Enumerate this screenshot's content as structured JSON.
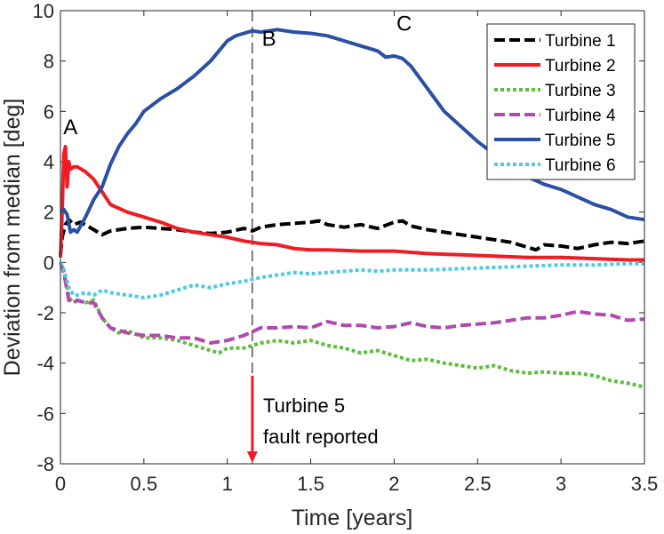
{
  "chart_data": {
    "type": "line",
    "title": "",
    "xlabel": "Time [years]",
    "ylabel": "Deviation from median [deg]",
    "xlim": [
      0,
      3.5
    ],
    "ylim": [
      -8,
      10
    ],
    "xticks": [
      0,
      0.5,
      1,
      1.5,
      2,
      2.5,
      3,
      3.5
    ],
    "xtick_labels": [
      "0",
      "0.5",
      "1",
      "1.5",
      "2",
      "2.5",
      "3",
      "3.5"
    ],
    "yticks": [
      -8,
      -6,
      -4,
      -2,
      0,
      2,
      4,
      6,
      8,
      10
    ],
    "ytick_labels": [
      "-8",
      "-6",
      "-4",
      "-2",
      "0",
      "2",
      "4",
      "6",
      "8",
      "10"
    ],
    "legend_position": "top-right",
    "series": [
      {
        "name": "Turbine 1",
        "color": "#000000",
        "style": "dashed",
        "x": [
          0,
          0.01,
          0.03,
          0.05,
          0.08,
          0.12,
          0.2,
          0.25,
          0.3,
          0.4,
          0.5,
          0.6,
          0.7,
          0.8,
          0.9,
          1.0,
          1.1,
          1.15,
          1.2,
          1.3,
          1.4,
          1.5,
          1.55,
          1.6,
          1.7,
          1.8,
          1.9,
          2.0,
          2.05,
          2.1,
          2.2,
          2.3,
          2.4,
          2.5,
          2.6,
          2.7,
          2.8,
          2.85,
          2.9,
          3.0,
          3.1,
          3.2,
          3.3,
          3.4,
          3.5
        ],
        "y": [
          0.3,
          1.0,
          1.5,
          1.7,
          1.5,
          1.6,
          1.3,
          1.1,
          1.25,
          1.35,
          1.4,
          1.35,
          1.3,
          1.2,
          1.15,
          1.2,
          1.35,
          1.25,
          1.4,
          1.5,
          1.55,
          1.6,
          1.65,
          1.5,
          1.4,
          1.5,
          1.35,
          1.6,
          1.65,
          1.45,
          1.3,
          1.2,
          1.1,
          1.0,
          0.9,
          0.8,
          0.6,
          0.5,
          0.7,
          0.65,
          0.55,
          0.7,
          0.8,
          0.75,
          0.85
        ]
      },
      {
        "name": "Turbine 2",
        "color": "#ee1c25",
        "style": "solid",
        "x": [
          0,
          0.01,
          0.02,
          0.03,
          0.04,
          0.05,
          0.06,
          0.08,
          0.1,
          0.15,
          0.2,
          0.25,
          0.3,
          0.4,
          0.5,
          0.6,
          0.7,
          0.8,
          0.9,
          1.0,
          1.1,
          1.2,
          1.3,
          1.4,
          1.5,
          1.6,
          1.8,
          2.0,
          2.2,
          2.4,
          2.6,
          2.8,
          3.0,
          3.2,
          3.4,
          3.5
        ],
        "y": [
          0.2,
          2.0,
          4.3,
          4.6,
          3.0,
          4.0,
          3.7,
          3.8,
          3.8,
          3.6,
          3.3,
          2.8,
          2.3,
          2.0,
          1.8,
          1.6,
          1.35,
          1.2,
          1.1,
          1.0,
          0.85,
          0.75,
          0.7,
          0.55,
          0.5,
          0.5,
          0.45,
          0.45,
          0.35,
          0.3,
          0.25,
          0.2,
          0.2,
          0.15,
          0.1,
          0.1
        ]
      },
      {
        "name": "Turbine 3",
        "color": "#5fbe3c",
        "style": "dotted",
        "x": [
          0,
          0.02,
          0.05,
          0.08,
          0.1,
          0.15,
          0.2,
          0.25,
          0.3,
          0.35,
          0.4,
          0.5,
          0.6,
          0.7,
          0.8,
          0.9,
          0.95,
          1.0,
          1.1,
          1.2,
          1.3,
          1.4,
          1.5,
          1.6,
          1.7,
          1.8,
          1.9,
          2.0,
          2.1,
          2.2,
          2.3,
          2.4,
          2.5,
          2.6,
          2.7,
          2.8,
          2.9,
          3.0,
          3.1,
          3.2,
          3.3,
          3.4,
          3.5
        ],
        "y": [
          0,
          -0.3,
          -1.4,
          -1.6,
          -1.5,
          -1.6,
          -1.5,
          -2.2,
          -2.6,
          -2.8,
          -2.7,
          -3.0,
          -3.0,
          -3.1,
          -3.3,
          -3.5,
          -3.6,
          -3.4,
          -3.4,
          -3.2,
          -3.1,
          -3.2,
          -3.1,
          -3.3,
          -3.4,
          -3.6,
          -3.5,
          -3.7,
          -3.9,
          -3.85,
          -4.0,
          -4.1,
          -4.2,
          -4.1,
          -4.3,
          -4.4,
          -4.35,
          -4.4,
          -4.4,
          -4.5,
          -4.7,
          -4.8,
          -4.95
        ]
      },
      {
        "name": "Turbine 4",
        "color": "#b04bad",
        "style": "dashed",
        "x": [
          0,
          0.02,
          0.05,
          0.08,
          0.1,
          0.15,
          0.2,
          0.25,
          0.3,
          0.35,
          0.4,
          0.5,
          0.6,
          0.7,
          0.8,
          0.9,
          1.0,
          1.1,
          1.15,
          1.2,
          1.3,
          1.4,
          1.5,
          1.6,
          1.7,
          1.8,
          1.9,
          2.0,
          2.1,
          2.2,
          2.3,
          2.4,
          2.5,
          2.6,
          2.7,
          2.8,
          2.9,
          3.0,
          3.1,
          3.2,
          3.3,
          3.4,
          3.5
        ],
        "y": [
          0,
          -0.4,
          -1.5,
          -1.6,
          -1.5,
          -1.6,
          -1.6,
          -2.2,
          -2.6,
          -2.7,
          -2.8,
          -2.9,
          -2.9,
          -3.0,
          -3.0,
          -3.2,
          -3.1,
          -2.9,
          -2.75,
          -2.6,
          -2.6,
          -2.55,
          -2.6,
          -2.35,
          -2.5,
          -2.5,
          -2.6,
          -2.55,
          -2.4,
          -2.55,
          -2.6,
          -2.5,
          -2.45,
          -2.4,
          -2.3,
          -2.2,
          -2.2,
          -2.1,
          -1.95,
          -2.05,
          -2.1,
          -2.3,
          -2.25
        ]
      },
      {
        "name": "Turbine 5",
        "color": "#2a4fa5",
        "style": "solid",
        "x": [
          0,
          0.02,
          0.04,
          0.06,
          0.08,
          0.1,
          0.15,
          0.2,
          0.25,
          0.3,
          0.35,
          0.4,
          0.45,
          0.5,
          0.6,
          0.7,
          0.8,
          0.9,
          0.95,
          1.0,
          1.05,
          1.1,
          1.15,
          1.2,
          1.3,
          1.4,
          1.5,
          1.6,
          1.7,
          1.8,
          1.9,
          1.95,
          2.0,
          2.05,
          2.1,
          2.2,
          2.3,
          2.4,
          2.5,
          2.6,
          2.7,
          2.8,
          2.9,
          3.0,
          3.1,
          3.2,
          3.3,
          3.4,
          3.5
        ],
        "y": [
          2.0,
          2.1,
          1.9,
          1.2,
          1.3,
          1.2,
          1.8,
          2.5,
          3.0,
          3.9,
          4.6,
          5.1,
          5.5,
          6.0,
          6.5,
          6.9,
          7.4,
          8.0,
          8.4,
          8.8,
          9.0,
          9.1,
          9.2,
          9.15,
          9.25,
          9.15,
          9.1,
          9.0,
          8.8,
          8.6,
          8.4,
          8.15,
          8.2,
          8.1,
          7.8,
          6.9,
          6.0,
          5.4,
          4.8,
          4.3,
          3.8,
          3.4,
          3.1,
          2.9,
          2.6,
          2.3,
          2.1,
          1.8,
          1.7
        ]
      },
      {
        "name": "Turbine 6",
        "color": "#4ecae0",
        "style": "dotted",
        "x": [
          0,
          0.02,
          0.05,
          0.08,
          0.1,
          0.15,
          0.2,
          0.25,
          0.3,
          0.4,
          0.5,
          0.6,
          0.7,
          0.8,
          0.9,
          1.0,
          1.1,
          1.2,
          1.3,
          1.4,
          1.5,
          1.6,
          1.7,
          1.8,
          1.9,
          2.0,
          2.2,
          2.4,
          2.6,
          2.8,
          3.0,
          3.2,
          3.4,
          3.5
        ],
        "y": [
          0,
          -0.3,
          -1.0,
          -1.3,
          -1.3,
          -1.2,
          -1.3,
          -1.1,
          -1.2,
          -1.3,
          -1.4,
          -1.3,
          -1.1,
          -0.9,
          -1.0,
          -0.85,
          -0.75,
          -0.6,
          -0.5,
          -0.4,
          -0.45,
          -0.4,
          -0.35,
          -0.3,
          -0.35,
          -0.3,
          -0.3,
          -0.25,
          -0.2,
          -0.15,
          -0.1,
          -0.1,
          -0.05,
          -0.05
        ]
      }
    ],
    "annotations": [
      {
        "label": "A",
        "x": 0.06,
        "y": 5.1
      },
      {
        "label": "B",
        "x": 1.25,
        "y": 8.6
      },
      {
        "label": "C",
        "x": 2.06,
        "y": 9.2
      }
    ],
    "vertical_marker": {
      "x": 1.15,
      "style": "dashed",
      "color": "#000000"
    },
    "fault_arrow": {
      "x": 1.15,
      "y_from": -4.5,
      "y_to": -8.0,
      "color": "#ee1c25",
      "line1": "Turbine 5",
      "line2": "fault reported"
    }
  }
}
